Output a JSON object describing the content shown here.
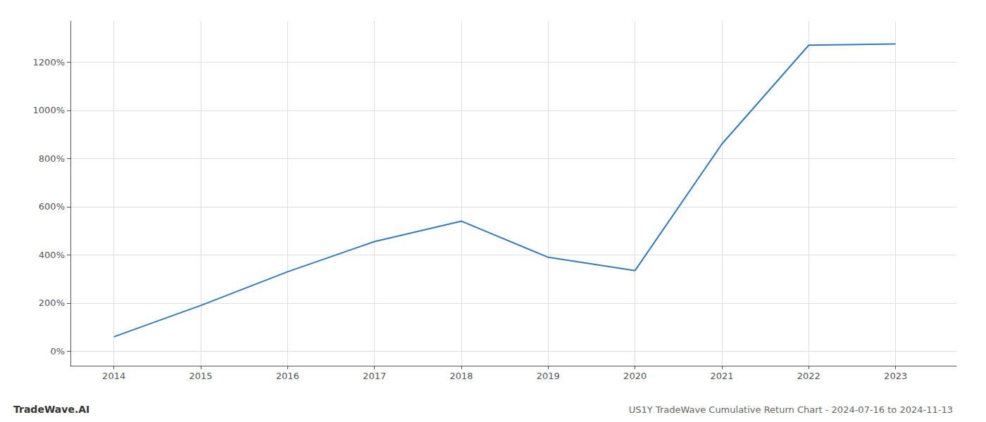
{
  "chart_data": {
    "type": "line",
    "title": "US1Y TradeWave Cumulative Return Chart - 2024-07-16 to 2024-11-13",
    "annotations": [
      "TradeWave.AI"
    ],
    "x": [
      2014,
      2015,
      2016,
      2017,
      2018,
      2019,
      2020,
      2021,
      2022,
      2023
    ],
    "values": [
      60,
      190,
      330,
      455,
      540,
      390,
      335,
      860,
      1270,
      1275
    ],
    "color": "#2e7bbf",
    "xlim": [
      2013.5,
      2023.7
    ],
    "xticks": [
      2014,
      2015,
      2016,
      2017,
      2018,
      2019,
      2020,
      2021,
      2022,
      2023
    ],
    "ylim": [
      -60,
      1370
    ],
    "yticks": [
      {
        "value": 0,
        "label": "0%"
      },
      {
        "value": 200,
        "label": "200%"
      },
      {
        "value": 400,
        "label": "400%"
      },
      {
        "value": 600,
        "label": "600%"
      },
      {
        "value": 800,
        "label": "800%"
      },
      {
        "value": 1000,
        "label": "1000%"
      },
      {
        "value": 1200,
        "label": "1200%"
      }
    ],
    "grid": true
  }
}
